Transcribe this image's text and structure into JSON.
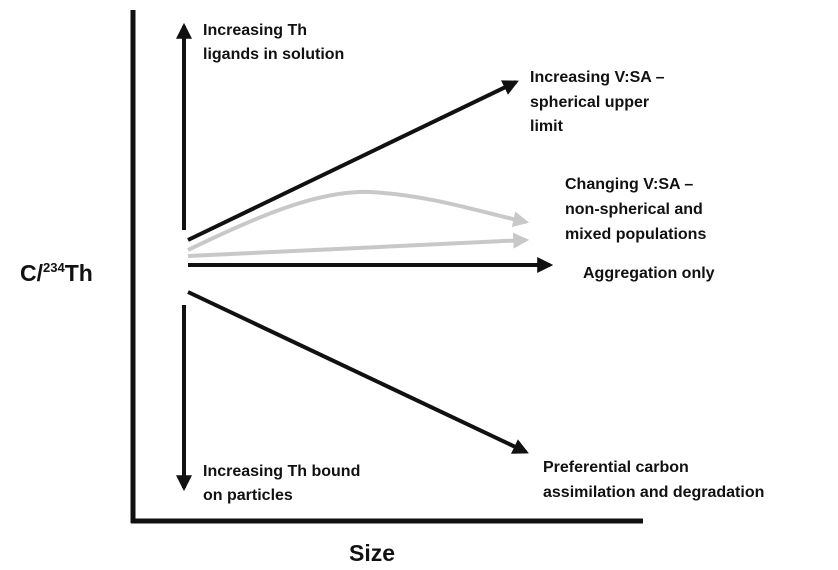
{
  "x_axis": {
    "label": "Size"
  },
  "y_axis": {
    "prefix": "C/",
    "superscript": "234",
    "suffix": "Th"
  },
  "annotations": [
    {
      "lines": [
        "Increasing Th",
        "ligands in solution"
      ]
    },
    {
      "lines": [
        "Increasing Th bound",
        "on particles"
      ]
    },
    {
      "lines": [
        "Increasing V:SA –",
        "spherical upper",
        "limit"
      ]
    },
    {
      "lines": [
        "Changing V:SA –",
        "non-spherical and",
        "mixed populations"
      ]
    },
    {
      "lines": [
        "Aggregation only"
      ]
    },
    {
      "lines": [
        "Preferential carbon",
        "assimilation and degradation"
      ]
    }
  ]
}
